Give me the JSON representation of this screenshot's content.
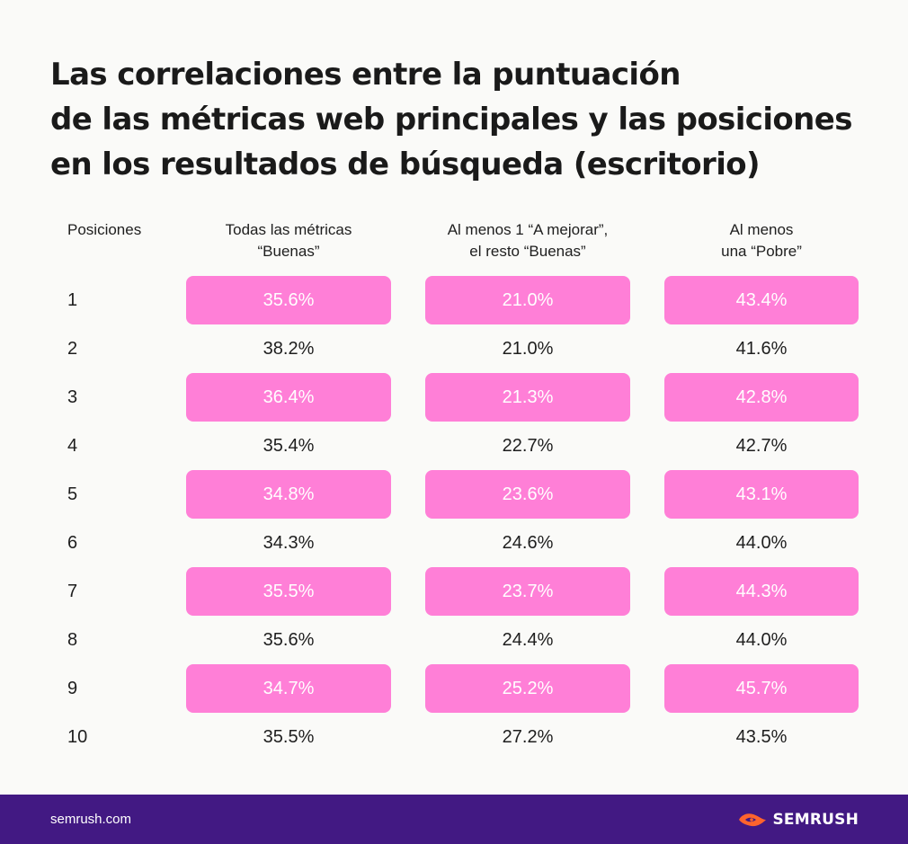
{
  "title": {
    "line1": "Las correlaciones entre la puntuación",
    "line2": "de las métricas web principales y las posiciones",
    "line3": "en los resultados de búsqueda (escritorio)"
  },
  "chart_data": {
    "type": "table",
    "title": "Las correlaciones entre la puntuación de las métricas web principales y las posiciones en los resultados de búsqueda (escritorio)",
    "columns": [
      "Posiciones",
      "Todas las métricas “Buenas”",
      "Al menos 1 “A mejorar”, el resto “Buenas”",
      "Al menos una “Pobre”"
    ],
    "rows": [
      {
        "position": "1",
        "values": [
          "35.6%",
          "21.0%",
          "43.4%"
        ],
        "highlight": true
      },
      {
        "position": "2",
        "values": [
          "38.2%",
          "21.0%",
          "41.6%"
        ],
        "highlight": false
      },
      {
        "position": "3",
        "values": [
          "36.4%",
          "21.3%",
          "42.8%"
        ],
        "highlight": true
      },
      {
        "position": "4",
        "values": [
          "35.4%",
          "22.7%",
          "42.7%"
        ],
        "highlight": false
      },
      {
        "position": "5",
        "values": [
          "34.8%",
          "23.6%",
          "43.1%"
        ],
        "highlight": true
      },
      {
        "position": "6",
        "values": [
          "34.3%",
          "24.6%",
          "44.0%"
        ],
        "highlight": false
      },
      {
        "position": "7",
        "values": [
          "35.5%",
          "23.7%",
          "44.3%"
        ],
        "highlight": true
      },
      {
        "position": "8",
        "values": [
          "35.6%",
          "24.4%",
          "44.0%"
        ],
        "highlight": false
      },
      {
        "position": "9",
        "values": [
          "34.7%",
          "25.2%",
          "45.7%"
        ],
        "highlight": true
      },
      {
        "position": "10",
        "values": [
          "35.5%",
          "27.2%",
          "43.5%"
        ],
        "highlight": false
      }
    ]
  },
  "headers": {
    "positions": "Posiciones",
    "col1_line1": "Todas las métricas",
    "col1_line2": "“Buenas”",
    "col2_line1": "Al menos 1 “A mejorar”,",
    "col2_line2": "el resto “Buenas”",
    "col3_line1": "Al menos",
    "col3_line2": "una “Pobre”"
  },
  "colors": {
    "highlight": "#ff7fd7",
    "footer": "#421983",
    "brand_accent": "#ff642d",
    "background": "#fafaf8"
  },
  "footer": {
    "url": "semrush.com",
    "brand": "SEMRUSH",
    "brand_icon": "semrush-flame-icon"
  }
}
